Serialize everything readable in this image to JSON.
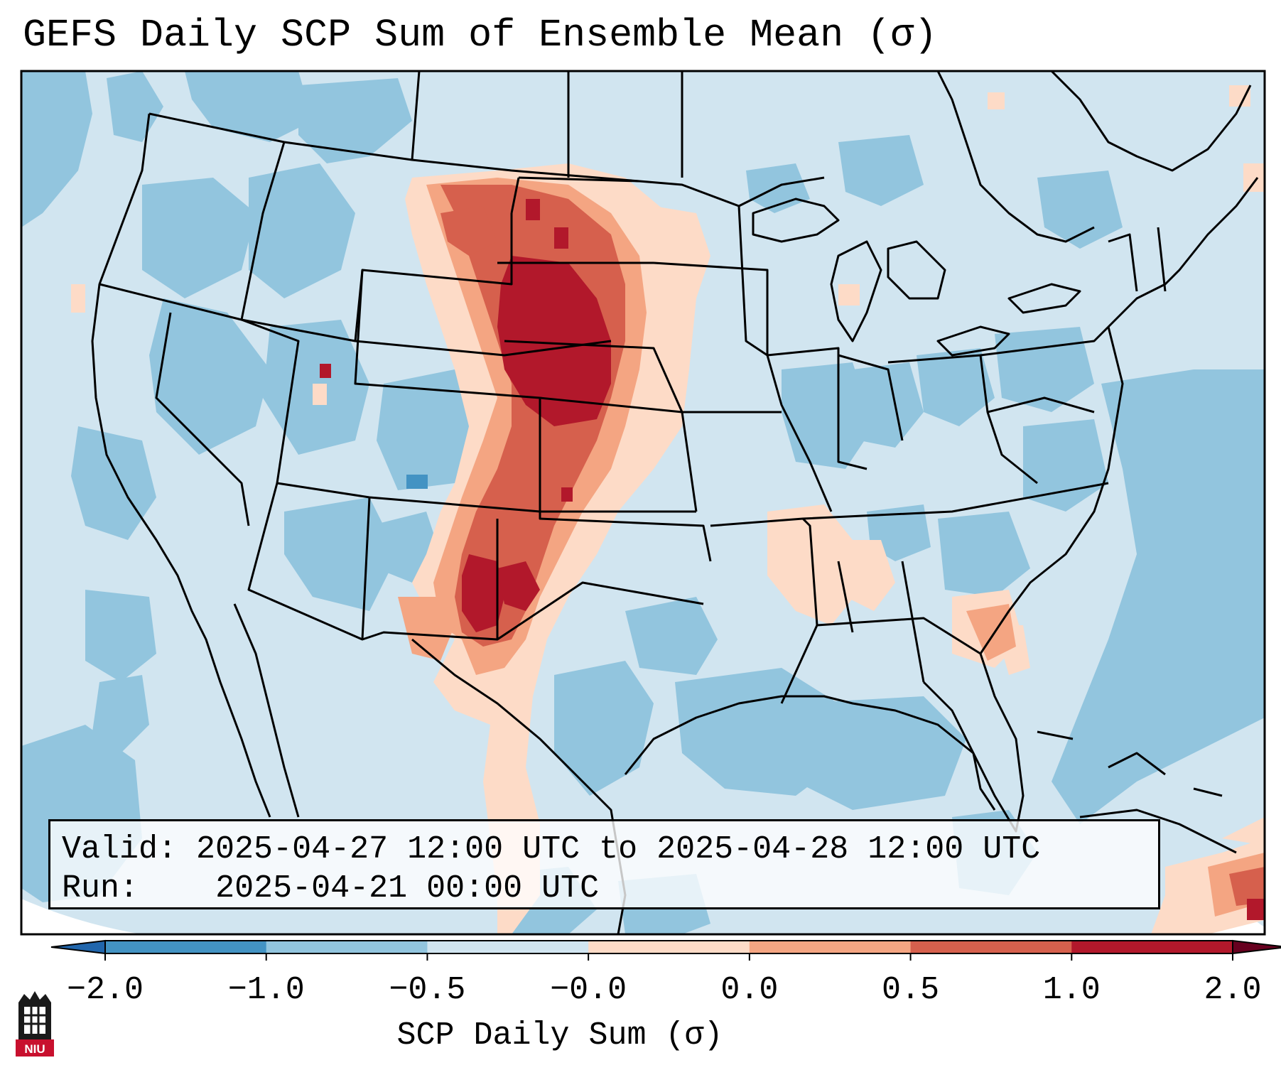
{
  "title": "GEFS Daily SCP Sum of Ensemble Mean (σ)",
  "info": {
    "valid_label": "Valid:",
    "valid_value": "2025-04-27 12:00 UTC to 2025-04-28 12:00 UTC",
    "run_label": "Run:",
    "run_value": "2025-04-21 00:00 UTC"
  },
  "colorbar": {
    "label": "SCP Daily Sum (σ)",
    "ticks": [
      "−2.0",
      "−1.0",
      "−0.5",
      "−0.0",
      "0.0",
      "0.5",
      "1.0",
      "2.0"
    ],
    "colors": [
      "#4393c3",
      "#92c5de",
      "#d1e5f0",
      "#fddbc7",
      "#f4a582",
      "#d6604d",
      "#b2182b"
    ],
    "extend": "both"
  },
  "logo": {
    "text": "NIU"
  },
  "colors": {
    "background_ocean": "#d1e5f0",
    "negative_light": "#d1e5f0",
    "negative_mid": "#92c5de",
    "negative_strong": "#4393c3",
    "positive_light": "#fddbc7",
    "positive_mid": "#f4a582",
    "positive_strong": "#d6604d",
    "positive_max": "#b2182b"
  }
}
